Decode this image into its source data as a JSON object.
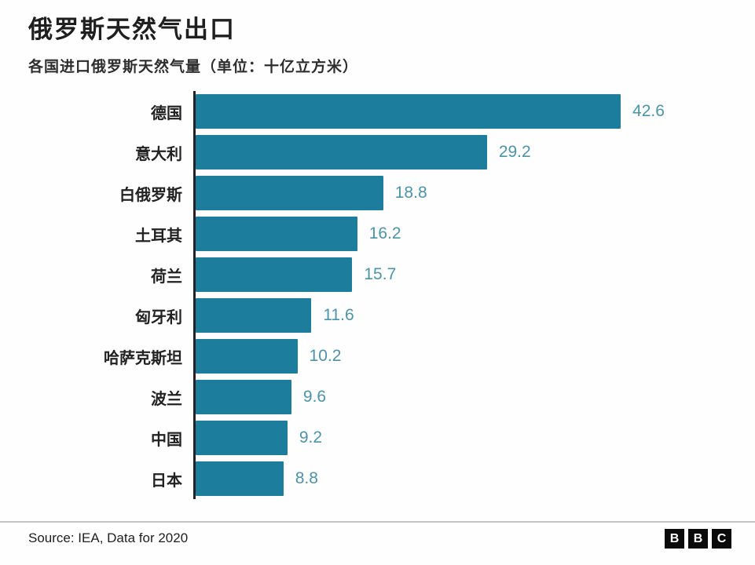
{
  "title": "俄罗斯天然气出口",
  "subtitle": "各国进口俄罗斯天然气量（单位：十亿立方米）",
  "chart_data": {
    "type": "bar",
    "orientation": "horizontal",
    "title": "俄罗斯天然气出口",
    "subtitle": "各国进口俄罗斯天然气量（单位：十亿立方米）",
    "unit": "十亿立方米",
    "categories": [
      "德国",
      "意大利",
      "白俄罗斯",
      "土耳其",
      "荷兰",
      "匈牙利",
      "哈萨克斯坦",
      "波兰",
      "中国",
      "日本"
    ],
    "values": [
      42.6,
      29.2,
      18.8,
      16.2,
      15.7,
      11.6,
      10.2,
      9.6,
      9.2,
      8.8
    ],
    "value_labels": [
      "42.6",
      "29.2",
      "18.8",
      "16.2",
      "15.7",
      "11.6",
      "10.2",
      "9.6",
      "9.2",
      "8.8"
    ],
    "xlabel": "",
    "ylabel": "",
    "xlim": [
      0,
      45
    ],
    "grid": false,
    "legend": false,
    "bar_color": "#1d7d9d",
    "value_label_color": "#4a94ac",
    "axis_line_color": "#232323"
  },
  "footer": {
    "source": "Source: IEA, Data for 2020"
  },
  "logo": {
    "name": "BBC",
    "letters": [
      "B",
      "B",
      "C"
    ]
  }
}
